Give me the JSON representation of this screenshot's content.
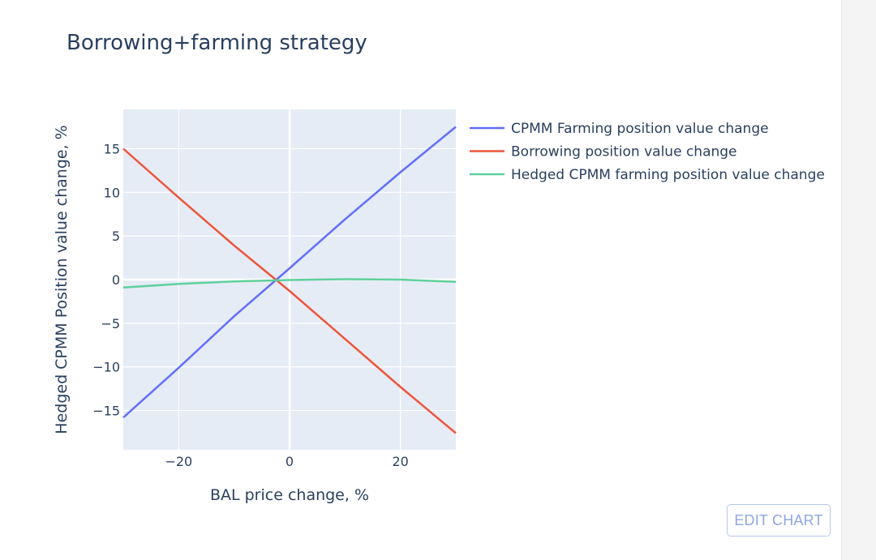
{
  "chart_data": {
    "type": "line",
    "title": "Borrowing+farming strategy",
    "xlabel": "BAL price change, %",
    "ylabel": "Hedged CPMM Position value change, %",
    "xlim": [
      -30,
      30
    ],
    "ylim": [
      -19.5,
      19.5
    ],
    "xticks": [
      -20,
      0,
      20
    ],
    "xtick_labels": [
      "−20",
      "0",
      "20"
    ],
    "yticks": [
      -15,
      -10,
      -5,
      0,
      5,
      10,
      15
    ],
    "ytick_labels": [
      "−15",
      "−10",
      "−5",
      "0",
      "5",
      "10",
      "15"
    ],
    "grid": true,
    "legend_position": "right",
    "series": [
      {
        "name": "CPMM Farming position value change",
        "color": "#636efa",
        "x": [
          -30,
          -20,
          -10,
          0,
          10,
          20,
          30
        ],
        "y": [
          -15.8,
          -10.1,
          -4.2,
          1.3,
          6.9,
          12.3,
          17.5
        ]
      },
      {
        "name": "Borrowing position value change",
        "color": "#ef553b",
        "x": [
          -30,
          -20,
          -10,
          0,
          10,
          20,
          30
        ],
        "y": [
          15.0,
          9.4,
          3.9,
          -1.3,
          -6.8,
          -12.3,
          -17.6
        ]
      },
      {
        "name": "Hedged CPMM farming position value change",
        "color": "#5fd09c",
        "x": [
          -30,
          -20,
          -10,
          0,
          10,
          20,
          30
        ],
        "y": [
          -0.9,
          -0.5,
          -0.2,
          -0.05,
          0.05,
          0.0,
          -0.25
        ]
      }
    ]
  },
  "controls": {
    "edit_chart_label": "EDIT CHART"
  }
}
